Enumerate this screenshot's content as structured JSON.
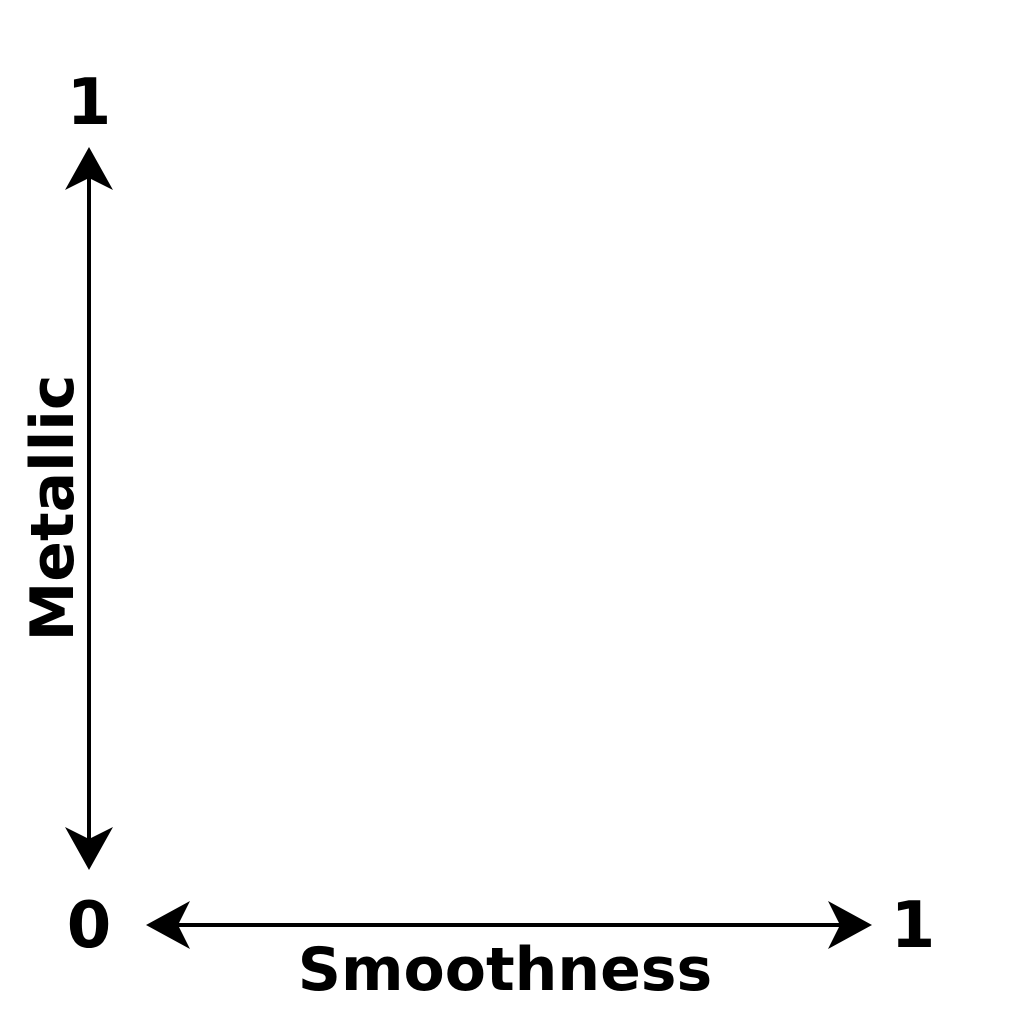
{
  "diagram": {
    "x_axis": {
      "label": "Smoothness",
      "min_label": "0",
      "max_label": "1"
    },
    "y_axis": {
      "label": "Metallic",
      "max_label": "1"
    },
    "colors": {
      "ink": "#000000",
      "background": "#ffffff"
    }
  }
}
